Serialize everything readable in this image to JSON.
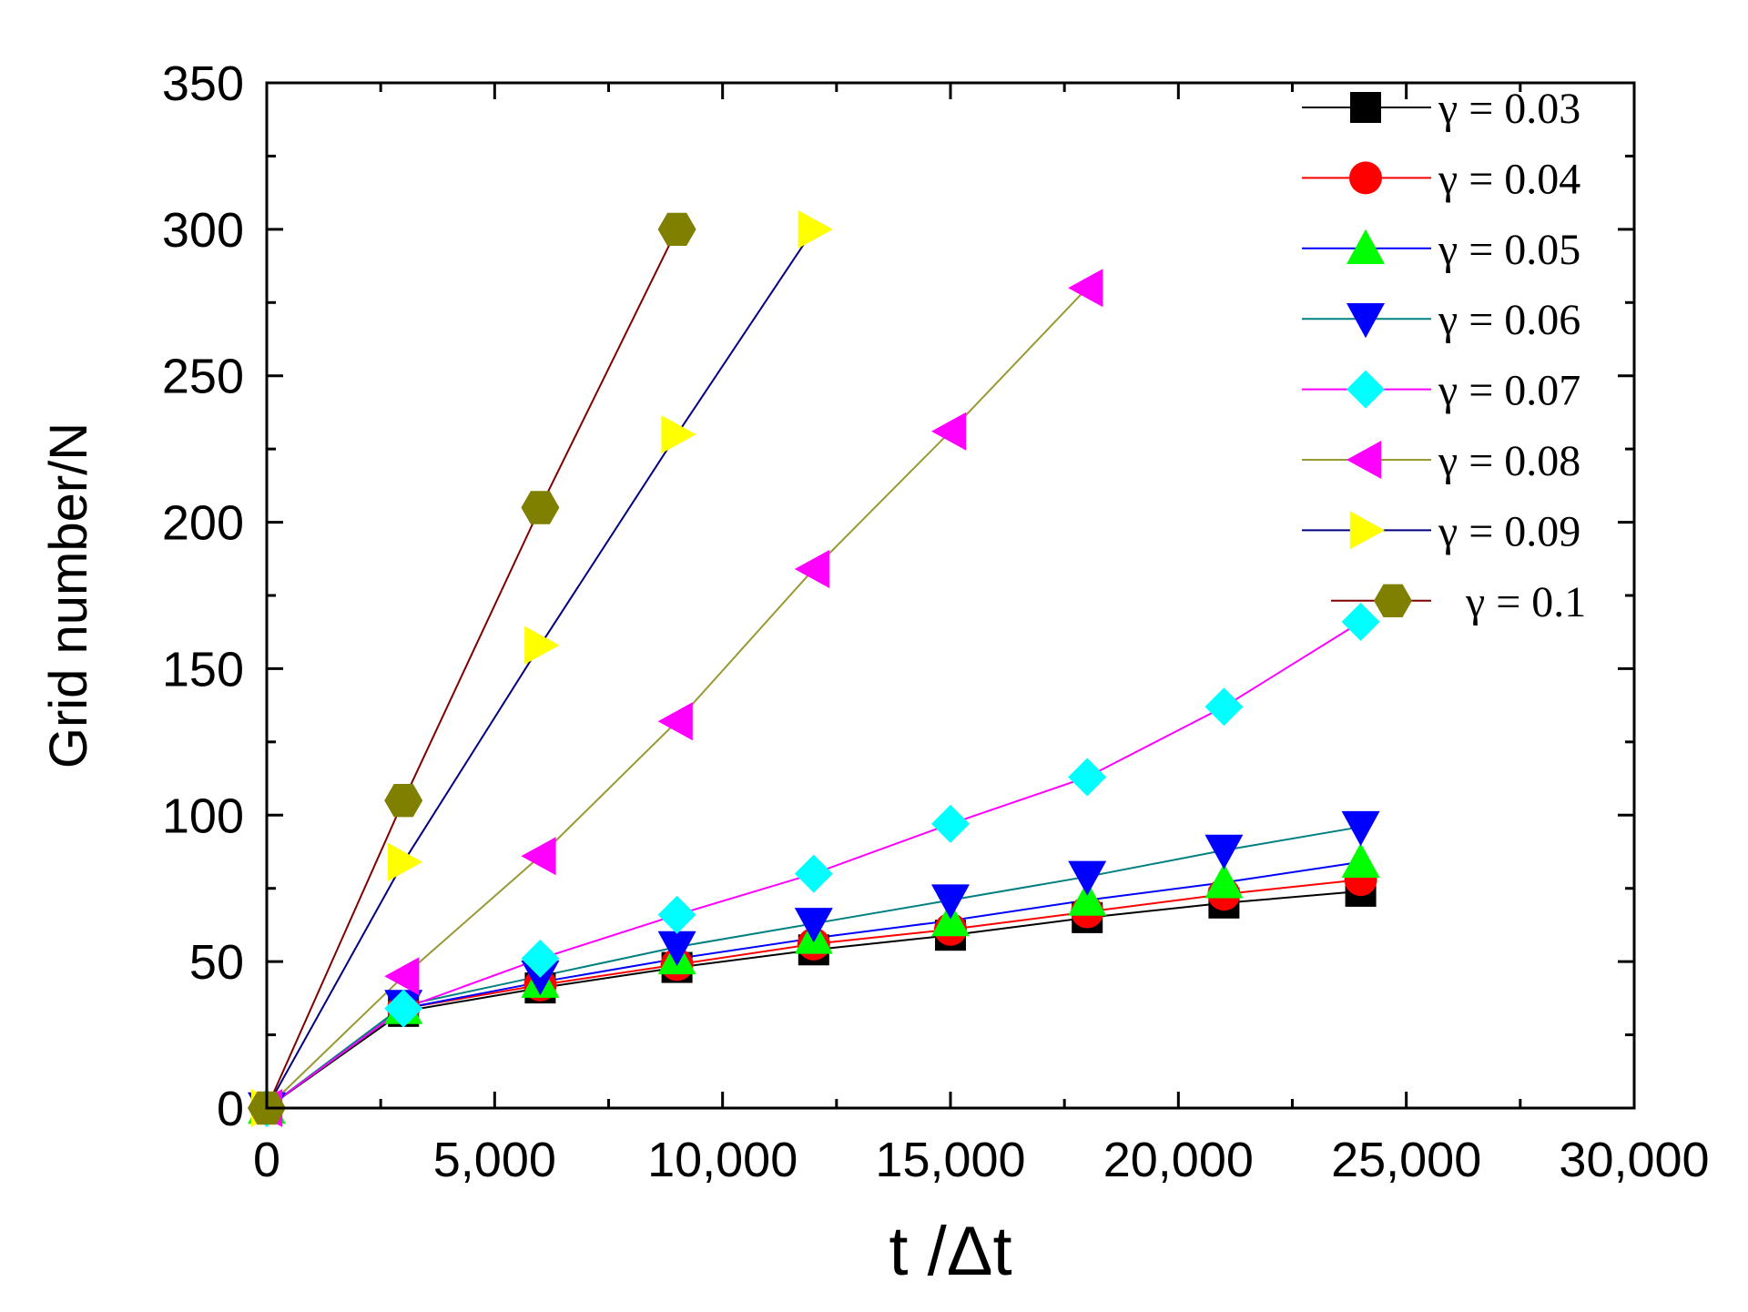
{
  "chart_data": {
    "type": "line",
    "title": "",
    "xlabel": "t /Δt",
    "ylabel": "Grid number/N",
    "xlim": [
      0,
      30000
    ],
    "ylim": [
      0,
      350
    ],
    "grid": false,
    "legend_position": "top-right",
    "x_ticks": [
      {
        "value": 0,
        "label": "0"
      },
      {
        "value": 5000,
        "label": "5,000"
      },
      {
        "value": 10000,
        "label": "10,000"
      },
      {
        "value": 15000,
        "label": "15,000"
      },
      {
        "value": 20000,
        "label": "20,000"
      },
      {
        "value": 25000,
        "label": "25,000"
      },
      {
        "value": 30000,
        "label": "30,000"
      }
    ],
    "y_ticks": [
      {
        "value": 0,
        "label": "0"
      },
      {
        "value": 50,
        "label": "50"
      },
      {
        "value": 100,
        "label": "100"
      },
      {
        "value": 150,
        "label": "150"
      },
      {
        "value": 200,
        "label": "200"
      },
      {
        "value": 250,
        "label": "250"
      },
      {
        "value": 300,
        "label": "300"
      },
      {
        "value": 350,
        "label": "350"
      }
    ],
    "series": [
      {
        "name": "γ = 0.03",
        "marker": "square",
        "line_color": "#000000",
        "marker_color": "#000000",
        "x": [
          0,
          3000,
          6000,
          9000,
          12000,
          15000,
          18000,
          21000,
          24000
        ],
        "y": [
          0,
          33,
          41,
          48,
          54,
          59,
          65,
          70,
          74
        ]
      },
      {
        "name": "γ = 0.04",
        "marker": "circle",
        "line_color": "#ff0000",
        "marker_color": "#ff0000",
        "x": [
          0,
          3000,
          6000,
          9000,
          12000,
          15000,
          18000,
          21000,
          24000
        ],
        "y": [
          0,
          34,
          42,
          49,
          56,
          61,
          67,
          73,
          78
        ]
      },
      {
        "name": "γ = 0.05",
        "marker": "triangle-up",
        "line_color": "#0000ff",
        "marker_color": "#00ff00",
        "x": [
          0,
          3000,
          6000,
          9000,
          12000,
          15000,
          18000,
          21000,
          24000
        ],
        "y": [
          0,
          34,
          43,
          51,
          58,
          64,
          71,
          77,
          84
        ]
      },
      {
        "name": "γ = 0.06",
        "marker": "triangle-down",
        "line_color": "#008080",
        "marker_color": "#0000ff",
        "x": [
          0,
          3000,
          6000,
          9000,
          12000,
          15000,
          18000,
          21000,
          24000
        ],
        "y": [
          0,
          35,
          45,
          55,
          63,
          71,
          79,
          88,
          96
        ]
      },
      {
        "name": "γ = 0.07",
        "marker": "diamond",
        "line_color": "#ff00ff",
        "marker_color": "#00ffff",
        "x": [
          0,
          3000,
          6000,
          9000,
          12000,
          15000,
          18000,
          21000,
          24000
        ],
        "y": [
          0,
          34,
          51,
          66,
          80,
          97,
          113,
          137,
          166
        ]
      },
      {
        "name": "γ = 0.08",
        "marker": "triangle-left",
        "line_color": "#999933",
        "marker_color": "#ff00ff",
        "x": [
          0,
          3000,
          6000,
          9000,
          12000,
          15000,
          18000
        ],
        "y": [
          0,
          45,
          86,
          132,
          184,
          231,
          280
        ]
      },
      {
        "name": "γ = 0.09",
        "marker": "triangle-right",
        "line_color": "#000080",
        "marker_color": "#ffff00",
        "x": [
          0,
          3000,
          6000,
          9000,
          12000
        ],
        "y": [
          0,
          84,
          158,
          230,
          300
        ]
      },
      {
        "name": "γ = 0.1",
        "marker": "hexagon",
        "line_color": "#800000",
        "marker_color": "#808000",
        "x": [
          0,
          3000,
          6000,
          9000
        ],
        "y": [
          0,
          105,
          205,
          300
        ]
      }
    ]
  }
}
